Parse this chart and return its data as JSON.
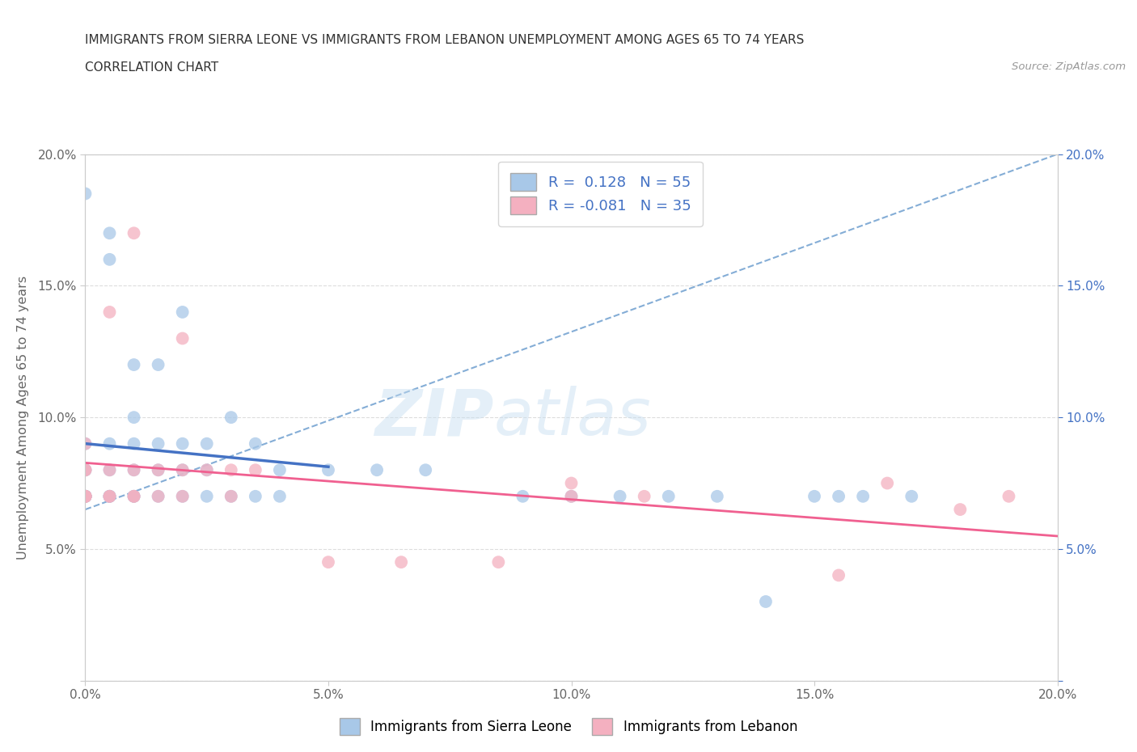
{
  "title_line1": "IMMIGRANTS FROM SIERRA LEONE VS IMMIGRANTS FROM LEBANON UNEMPLOYMENT AMONG AGES 65 TO 74 YEARS",
  "title_line2": "CORRELATION CHART",
  "source_text": "Source: ZipAtlas.com",
  "ylabel": "Unemployment Among Ages 65 to 74 years",
  "xlim": [
    0.0,
    0.2
  ],
  "ylim": [
    0.0,
    0.2
  ],
  "xticks": [
    0.0,
    0.05,
    0.1,
    0.15,
    0.2
  ],
  "yticks": [
    0.0,
    0.05,
    0.1,
    0.15,
    0.2
  ],
  "xticklabels": [
    "0.0%",
    "5.0%",
    "10.0%",
    "15.0%",
    "20.0%"
  ],
  "yticklabels": [
    "",
    "5.0%",
    "10.0%",
    "15.0%",
    "20.0%"
  ],
  "right_yticklabels": [
    "",
    "5.0%",
    "10.0%",
    "15.0%",
    "20.0%"
  ],
  "watermark_zip": "ZIP",
  "watermark_atlas": "atlas",
  "color_sierra": "#a8c8e8",
  "color_lebanon": "#f4b0c0",
  "R_sierra": 0.128,
  "N_sierra": 55,
  "R_lebanon": -0.081,
  "N_lebanon": 35,
  "sierra_x": [
    0.0,
    0.0,
    0.0,
    0.0,
    0.0,
    0.0,
    0.0,
    0.0,
    0.0,
    0.0,
    0.0,
    0.0,
    0.005,
    0.005,
    0.005,
    0.005,
    0.005,
    0.005,
    0.005,
    0.01,
    0.01,
    0.01,
    0.01,
    0.01,
    0.01,
    0.015,
    0.015,
    0.015,
    0.015,
    0.02,
    0.02,
    0.02,
    0.02,
    0.025,
    0.025,
    0.025,
    0.03,
    0.03,
    0.035,
    0.035,
    0.04,
    0.04,
    0.05,
    0.06,
    0.07,
    0.09,
    0.1,
    0.11,
    0.12,
    0.13,
    0.14,
    0.15,
    0.155,
    0.16,
    0.17
  ],
  "sierra_y": [
    0.07,
    0.07,
    0.07,
    0.07,
    0.07,
    0.07,
    0.07,
    0.07,
    0.08,
    0.08,
    0.09,
    0.185,
    0.07,
    0.07,
    0.07,
    0.08,
    0.09,
    0.16,
    0.17,
    0.07,
    0.07,
    0.08,
    0.09,
    0.1,
    0.12,
    0.07,
    0.08,
    0.09,
    0.12,
    0.07,
    0.08,
    0.09,
    0.14,
    0.07,
    0.08,
    0.09,
    0.07,
    0.1,
    0.07,
    0.09,
    0.07,
    0.08,
    0.08,
    0.08,
    0.08,
    0.07,
    0.07,
    0.07,
    0.07,
    0.07,
    0.03,
    0.07,
    0.07,
    0.07,
    0.07
  ],
  "lebanon_x": [
    0.0,
    0.0,
    0.0,
    0.0,
    0.0,
    0.0,
    0.0,
    0.0,
    0.005,
    0.005,
    0.005,
    0.005,
    0.01,
    0.01,
    0.01,
    0.01,
    0.015,
    0.015,
    0.02,
    0.02,
    0.02,
    0.025,
    0.03,
    0.03,
    0.035,
    0.05,
    0.065,
    0.085,
    0.1,
    0.1,
    0.115,
    0.155,
    0.165,
    0.18,
    0.19
  ],
  "lebanon_y": [
    0.07,
    0.07,
    0.07,
    0.07,
    0.07,
    0.08,
    0.08,
    0.09,
    0.07,
    0.07,
    0.08,
    0.14,
    0.07,
    0.07,
    0.08,
    0.17,
    0.07,
    0.08,
    0.07,
    0.08,
    0.13,
    0.08,
    0.07,
    0.08,
    0.08,
    0.045,
    0.045,
    0.045,
    0.07,
    0.075,
    0.07,
    0.04,
    0.075,
    0.065,
    0.07
  ],
  "grid_color": "#dddddd",
  "trend_color_sierra": "#4472c4",
  "trend_color_lebanon": "#f06090",
  "trend_dash_color": "#6699cc",
  "background_color": "#ffffff",
  "axis_color": "#4472c4",
  "text_color": "#333333",
  "label_color": "#666666"
}
